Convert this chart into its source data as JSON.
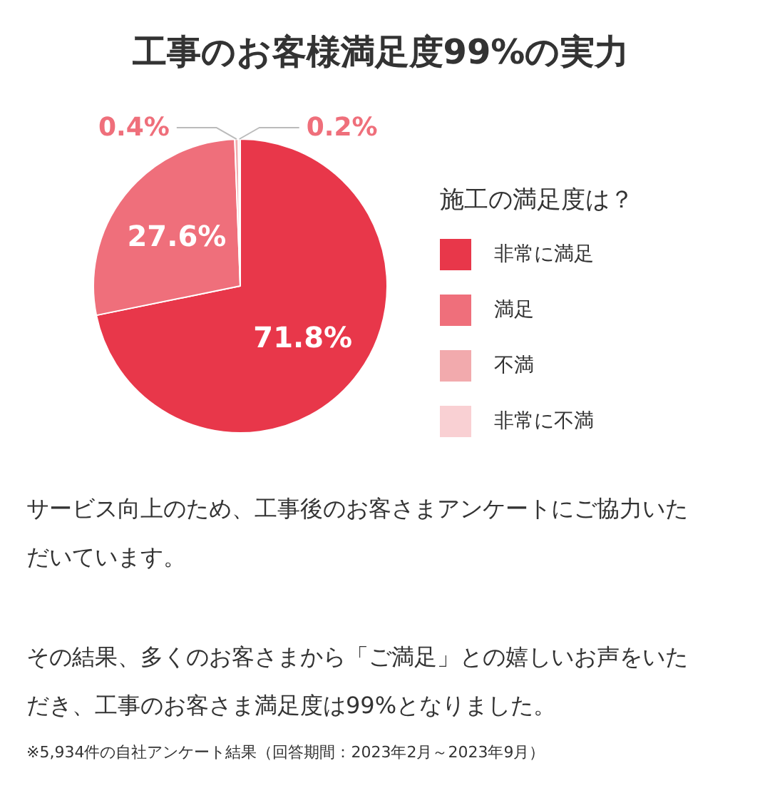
{
  "chart_data": {
    "type": "pie",
    "title": "工事のお客様満足度99%の実力",
    "legend_title": "施工の満足度は？",
    "categories": [
      "非常に満足",
      "満足",
      "不満",
      "非常に不満"
    ],
    "values": [
      71.8,
      27.6,
      0.4,
      0.2
    ],
    "colors": [
      "#e8374a",
      "#ef6f7b",
      "#f2aaad",
      "#f9d0d3"
    ],
    "value_labels": [
      "71.8%",
      "27.6%",
      "0.4%",
      "0.2%"
    ],
    "legend": "right",
    "annotations": [
      "サービス向上のため、工事後のお客さまアンケートにご協力いただいています。",
      "その結果、多くのお客さまから「ご満足」との嬉しいお声をいただき、工事のお客さま満足度は99%となりました。",
      "※5,934件の自社アンケート結果（回答期間：2023年2月～2023年9月）"
    ]
  }
}
